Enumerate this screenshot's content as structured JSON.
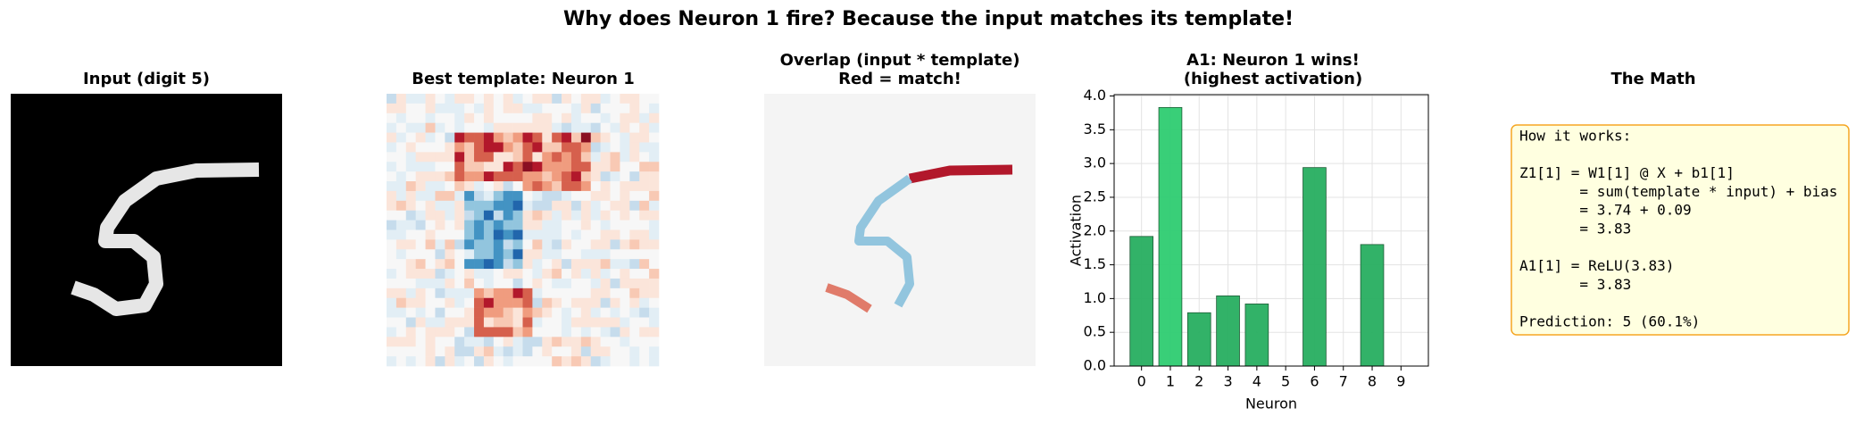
{
  "title": "Why does Neuron 1 fire? Because the input matches its template!",
  "panels": {
    "input": {
      "title": "Input (digit 5)"
    },
    "template": {
      "title": "Best template: Neuron 1"
    },
    "overlap": {
      "title": [
        "Overlap (input * template)",
        "Red = match!"
      ]
    },
    "math": {
      "title": "The Math",
      "blocks": [
        [
          "How it works:"
        ],
        [
          "Z1[1] = W1[1] @ X + b1[1]",
          "       = sum(template * input) + bias",
          "       = 3.74 + 0.09",
          "       = 3.83"
        ],
        [
          "A1[1] = ReLU(3.83)",
          "       = 3.83"
        ],
        [
          "Prediction: 5 (60.1%)"
        ]
      ]
    }
  },
  "chart_data": {
    "type": "bar",
    "title": [
      "A1: Neuron 1 wins!",
      "(highest activation)"
    ],
    "xlabel": "Neuron",
    "ylabel": "Activation",
    "categories": [
      "0",
      "1",
      "2",
      "3",
      "4",
      "5",
      "6",
      "7",
      "8",
      "9"
    ],
    "values": [
      1.92,
      3.83,
      0.79,
      1.04,
      0.92,
      0,
      2.94,
      0,
      1.8,
      0
    ],
    "colors": [
      "#27ae60",
      "#2ecc71",
      "#27ae60",
      "#27ae60",
      "#27ae60",
      "#27ae60",
      "#27ae60",
      "#27ae60",
      "#27ae60",
      "#27ae60"
    ],
    "ylim": [
      0,
      4.02
    ],
    "yticks": [
      {
        "value": 0,
        "label": "0.0"
      },
      {
        "value": 0.5,
        "label": "0.5"
      },
      {
        "value": 1,
        "label": "1.0"
      },
      {
        "value": 1.5,
        "label": "1.5"
      },
      {
        "value": 2,
        "label": "2.0"
      },
      {
        "value": 2.5,
        "label": "2.5"
      },
      {
        "value": 3,
        "label": "3.0"
      },
      {
        "value": 3.5,
        "label": "3.5"
      },
      {
        "value": 4,
        "label": "4.0"
      }
    ],
    "grid": true
  }
}
